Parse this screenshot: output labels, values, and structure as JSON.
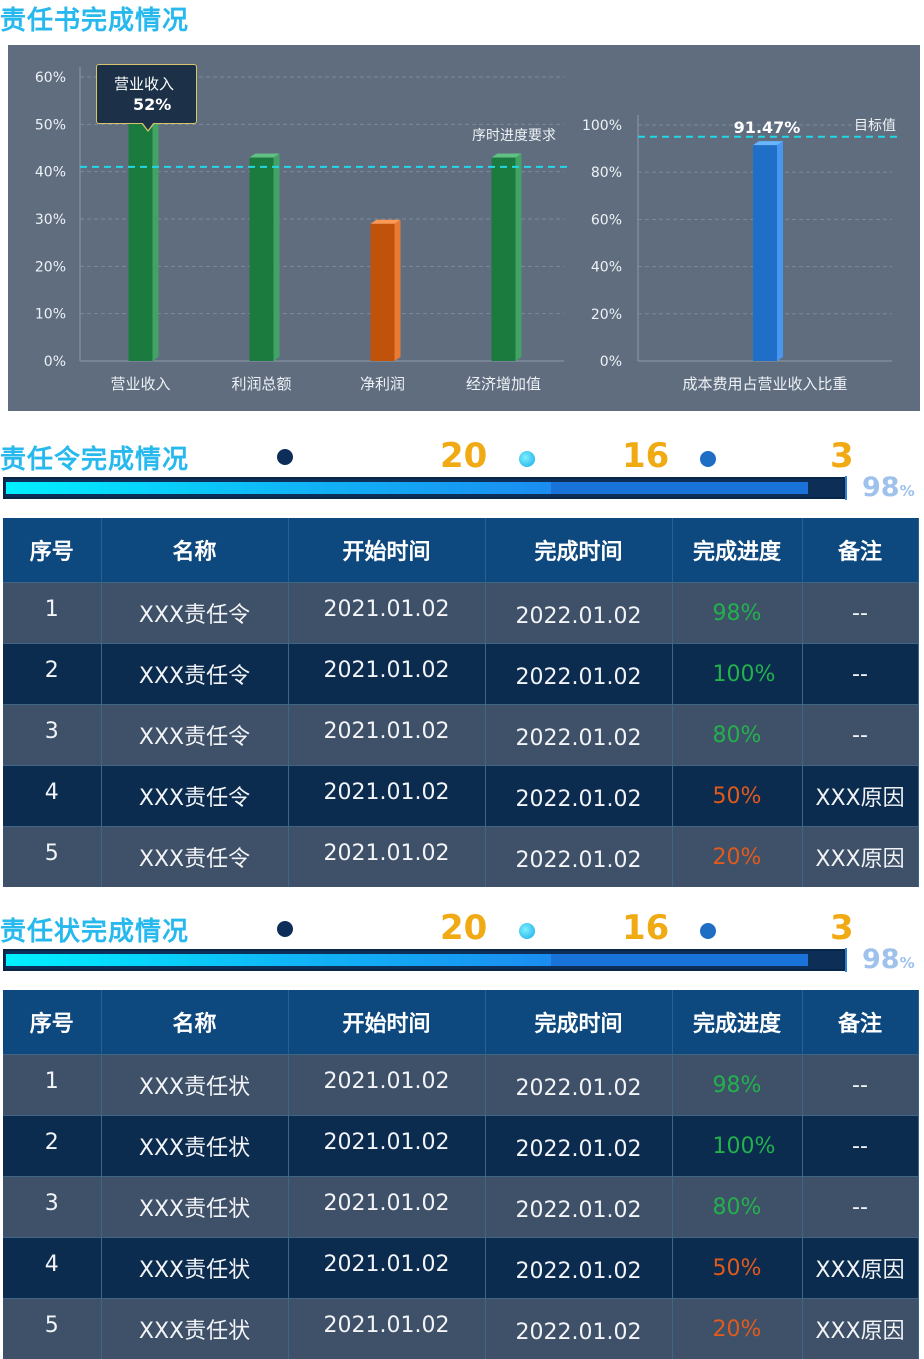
{
  "section1": {
    "title": "责任书完成情况"
  },
  "chart_data": [
    {
      "type": "bar",
      "categories": [
        "营业收入",
        "利润总额",
        "净利润",
        "经济增加值"
      ],
      "values": [
        52,
        43,
        29,
        43
      ],
      "bar_colors": [
        "#1b7a3e",
        "#1b7a3e",
        "#c0520c",
        "#1b7a3e"
      ],
      "y_ticks": [
        "0%",
        "10%",
        "20%",
        "30%",
        "40%",
        "50%",
        "60%"
      ],
      "ylim": [
        0,
        60
      ],
      "reference_line": {
        "label": "序时进度要求",
        "value": 41,
        "color": "#22d8e6"
      },
      "tooltip": {
        "category": "营业收入",
        "value_label": "52%"
      }
    },
    {
      "type": "bar",
      "categories": [
        "成本费用占营业收入比重"
      ],
      "values": [
        91.47
      ],
      "value_label": "91.47%",
      "bar_colors": [
        "#1f6fc8"
      ],
      "y_ticks": [
        "0%",
        "20%",
        "40%",
        "60%",
        "80%",
        "100%"
      ],
      "ylim": [
        0,
        100
      ],
      "reference_line": {
        "label": "目标值",
        "value": 95,
        "color": "#22d8e6"
      }
    }
  ],
  "orders": {
    "title": "责任令完成情况",
    "stats": [
      "20",
      "16",
      "3"
    ],
    "dot_colors": [
      "#0e2e5a",
      "#28c4f0",
      "#1f6ec6"
    ],
    "progress_percent": "98",
    "progress_unit": "%",
    "progress_fill": 0.98,
    "headers": [
      "序号",
      "名称",
      "开始时间",
      "完成时间",
      "完成进度",
      "备注"
    ],
    "rows": [
      {
        "idx": "1",
        "name": "XXX责任令",
        "start": "2021.01.02",
        "end": "2022.01.02",
        "progress": "98%",
        "note": "--"
      },
      {
        "idx": "2",
        "name": "XXX责任令",
        "start": "2021.01.02",
        "end": "2022.01.02",
        "progress": "100%",
        "note": "--"
      },
      {
        "idx": "3",
        "name": "XXX责任令",
        "start": "2021.01.02",
        "end": "2022.01.02",
        "progress": "80%",
        "note": "--"
      },
      {
        "idx": "4",
        "name": "XXX责任令",
        "start": "2021.01.02",
        "end": "2022.01.02",
        "progress": "50%",
        "note": "XXX原因"
      },
      {
        "idx": "5",
        "name": "XXX责任令",
        "start": "2021.01.02",
        "end": "2022.01.02",
        "progress": "20%",
        "note": "XXX原因"
      }
    ]
  },
  "letters": {
    "title": "责任状完成情况",
    "stats": [
      "20",
      "16",
      "3"
    ],
    "dot_colors": [
      "#0e2e5a",
      "#28c4f0",
      "#1f6ec6"
    ],
    "progress_percent": "98",
    "progress_unit": "%",
    "progress_fill": 0.98,
    "headers": [
      "序号",
      "名称",
      "开始时间",
      "完成时间",
      "完成进度",
      "备注"
    ],
    "rows": [
      {
        "idx": "1",
        "name": "XXX责任状",
        "start": "2021.01.02",
        "end": "2022.01.02",
        "progress": "98%",
        "note": "--"
      },
      {
        "idx": "2",
        "name": "XXX责任状",
        "start": "2021.01.02",
        "end": "2022.01.02",
        "progress": "100%",
        "note": "--"
      },
      {
        "idx": "3",
        "name": "XXX责任状",
        "start": "2021.01.02",
        "end": "2022.01.02",
        "progress": "80%",
        "note": "--"
      },
      {
        "idx": "4",
        "name": "XXX责任状",
        "start": "2021.01.02",
        "end": "2022.01.02",
        "progress": "50%",
        "note": "XXX原因"
      },
      {
        "idx": "5",
        "name": "XXX责任状",
        "start": "2021.01.02",
        "end": "2022.01.02",
        "progress": "20%",
        "note": "XXX原因"
      }
    ]
  },
  "status_colors": {
    "good": "#22b14c",
    "warn": "#e05a1c"
  }
}
